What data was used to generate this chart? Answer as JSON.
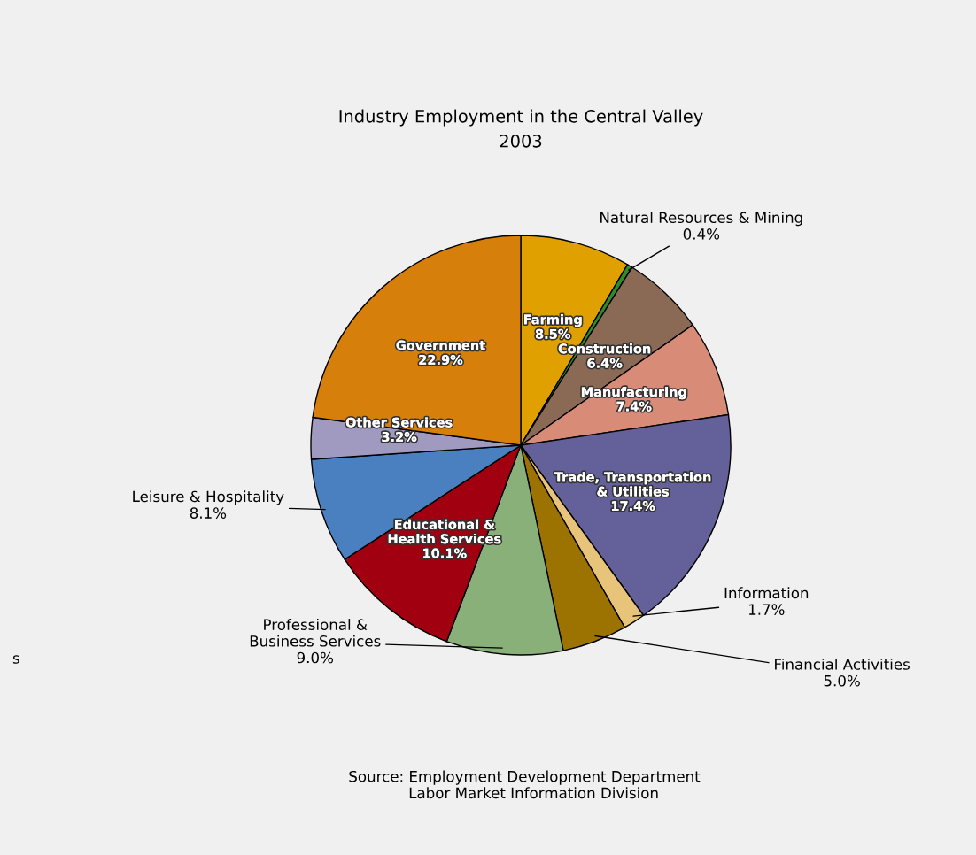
{
  "chart_data": {
    "type": "pie",
    "title": "Industry Employment in the Central Valley",
    "subtitle": "2003",
    "categories": [
      "Farming",
      "Natural Resources & Mining",
      "Construction",
      "Manufacturing",
      "Trade, Transportation\n& Utilities",
      "Information",
      "Financial Activities",
      "Professional &\nBusiness Services",
      "Educational &\nHealth Services",
      "Leisure & Hospitality",
      "Other Services",
      "Government"
    ],
    "values": [
      8.5,
      0.4,
      6.4,
      7.4,
      17.4,
      1.7,
      5.0,
      9.0,
      10.1,
      8.1,
      3.2,
      22.9
    ],
    "colors": [
      "#e0a100",
      "#2e8b2e",
      "#8a6a55",
      "#d88c78",
      "#64609a",
      "#e8c47a",
      "#9c7200",
      "#8ab07a",
      "#a00010",
      "#4a80c0",
      "#a09ac0",
      "#d67f0a"
    ],
    "value_labels": [
      "8.5%",
      "0.4%",
      "6.4%",
      "7.4%",
      "17.4%",
      "1.7%",
      "5.0%",
      "9.0%",
      "10.1%",
      "8.1%",
      "3.2%",
      "22.9%"
    ],
    "annotations": [
      "Source: Employment Development Department\n    Labor Market Information Division",
      "s"
    ]
  }
}
